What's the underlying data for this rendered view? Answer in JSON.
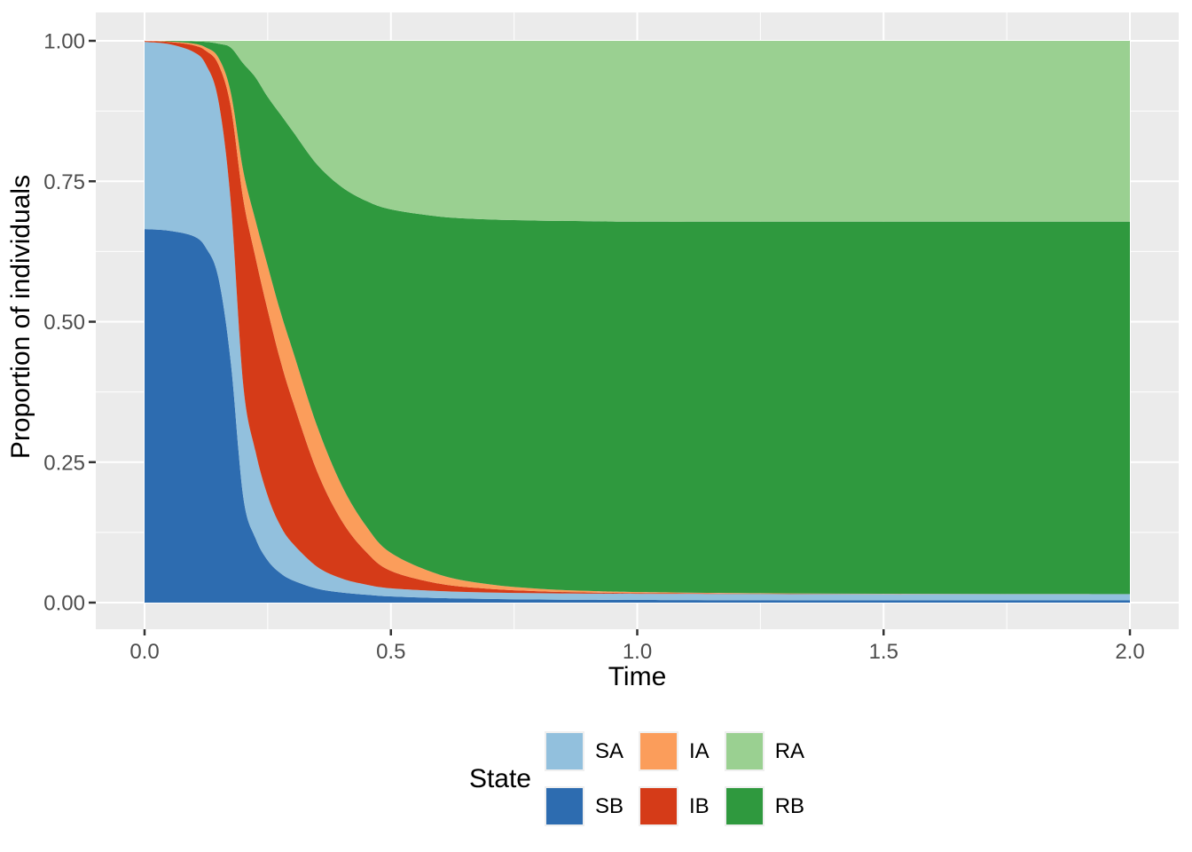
{
  "style": {
    "panel_bg": "#ebebeb",
    "grid_color": "#ffffff",
    "tick_color": "#333333",
    "tick_label_color": "#4d4d4d",
    "title_color": "#000000",
    "legend_key_bg": "#efefef"
  },
  "axes": {
    "x": {
      "title": "Time",
      "tick_labels": [
        "0.0",
        "0.5",
        "1.0",
        "1.5",
        "2.0"
      ],
      "tick_values": [
        0,
        0.5,
        1.0,
        1.5,
        2.0
      ],
      "minor_values": [
        0.25,
        0.75,
        1.25,
        1.75
      ],
      "range": [
        0,
        2
      ]
    },
    "y": {
      "title": "Proportion of individuals",
      "tick_labels": [
        "0.00",
        "0.25",
        "0.50",
        "0.75",
        "1.00"
      ],
      "tick_values": [
        0,
        0.25,
        0.5,
        0.75,
        1.0
      ],
      "minor_values": [
        0.125,
        0.375,
        0.625,
        0.875
      ],
      "range": [
        0,
        1
      ]
    }
  },
  "legend": {
    "title": "State",
    "entries": [
      {
        "label": "SA",
        "color": "#92c0dd"
      },
      {
        "label": "SB",
        "color": "#2d6cb0"
      },
      {
        "label": "IA",
        "color": "#fb9d5b"
      },
      {
        "label": "IB",
        "color": "#d53b18"
      },
      {
        "label": "RA",
        "color": "#9ad091"
      },
      {
        "label": "RB",
        "color": "#2f993e"
      }
    ]
  },
  "chart_data": {
    "type": "area",
    "stacked": true,
    "title": "",
    "xlabel": "Time",
    "ylabel": "Proportion of individuals",
    "xlim": [
      0,
      2
    ],
    "ylim": [
      0,
      1
    ],
    "grid": true,
    "legend_position": "bottom",
    "legend_title": "State",
    "stack_order_bottom_to_top": [
      "SB",
      "SA",
      "IB",
      "IA",
      "RB",
      "RA"
    ],
    "x": [
      0,
      0.05,
      0.1,
      0.125,
      0.15,
      0.175,
      0.2,
      0.225,
      0.25,
      0.275,
      0.3,
      0.35,
      0.4,
      0.45,
      0.5,
      0.6,
      0.7,
      0.8,
      0.9,
      1.0,
      1.25,
      1.5,
      1.75,
      2.0
    ],
    "series": [
      {
        "name": "SB",
        "color": "#2d6cb0",
        "values": [
          0.665,
          0.662,
          0.652,
          0.631,
          0.578,
          0.428,
          0.19,
          0.115,
          0.075,
          0.053,
          0.04,
          0.025,
          0.018,
          0.014,
          0.011,
          0.008,
          0.0065,
          0.0055,
          0.005,
          0.0047,
          0.0043,
          0.0041,
          0.004,
          0.004
        ]
      },
      {
        "name": "SA",
        "color": "#92c0dd",
        "values": [
          0.333,
          0.332,
          0.328,
          0.326,
          0.315,
          0.285,
          0.2,
          0.155,
          0.115,
          0.085,
          0.066,
          0.039,
          0.025,
          0.018,
          0.0145,
          0.0125,
          0.0115,
          0.0112,
          0.011,
          0.011,
          0.011,
          0.011,
          0.011,
          0.011
        ]
      },
      {
        "name": "IB",
        "color": "#d53b18",
        "values": [
          0.0015,
          0.004,
          0.012,
          0.025,
          0.065,
          0.17,
          0.33,
          0.345,
          0.33,
          0.295,
          0.255,
          0.17,
          0.103,
          0.058,
          0.031,
          0.013,
          0.0065,
          0.0035,
          0.002,
          0.0013,
          0.0006,
          0.0003,
          0.0002,
          0.0001
        ]
      },
      {
        "name": "IA",
        "color": "#fb9d5b",
        "values": [
          0.0005,
          0.001,
          0.003,
          0.006,
          0.012,
          0.025,
          0.05,
          0.066,
          0.079,
          0.087,
          0.09,
          0.081,
          0.063,
          0.046,
          0.032,
          0.016,
          0.008,
          0.0045,
          0.0028,
          0.0018,
          0.0008,
          0.0004,
          0.0002,
          0.0001
        ]
      },
      {
        "name": "RB",
        "color": "#2f993e",
        "values": [
          0,
          0.001,
          0.004,
          0.01,
          0.025,
          0.08,
          0.19,
          0.254,
          0.301,
          0.35,
          0.389,
          0.465,
          0.531,
          0.579,
          0.6115,
          0.6375,
          0.6495,
          0.6553,
          0.6582,
          0.6592,
          0.6613,
          0.6622,
          0.6626,
          0.6628
        ]
      },
      {
        "name": "RA",
        "color": "#9ad091",
        "values": [
          0,
          0,
          0.001,
          0.002,
          0.005,
          0.012,
          0.04,
          0.065,
          0.1,
          0.13,
          0.16,
          0.22,
          0.26,
          0.285,
          0.3,
          0.313,
          0.318,
          0.32,
          0.321,
          0.322,
          0.322,
          0.322,
          0.322,
          0.322
        ]
      }
    ]
  }
}
